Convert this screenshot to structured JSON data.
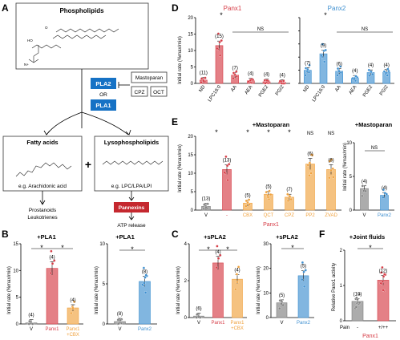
{
  "colors": {
    "panx1": "#d63b45",
    "panx1_light": "#e98489",
    "panx2": "#3d8fd0",
    "orange": "#f0a13c",
    "grey": "#7f7f7f",
    "blue_box": "#1672c5",
    "red_box": "#c5282f"
  },
  "panelA": {
    "letter": "A",
    "phospholipids": "Phospholipids",
    "mastoparan": "Mastoparan",
    "cpz": "CPZ",
    "oct": "OCT",
    "pla2": "PLA2",
    "or": "OR",
    "pla1": "PLA1",
    "fatty_acids": "Fatty acids",
    "fatty_example": "e.g. Arachidonic acid",
    "lyso": "Lysophospholipids",
    "lyso_example": "e.g. LPC/LPA/LPI",
    "plus": "+",
    "prostanoids": "Prostanoids",
    "leukotrienes": "Leukotrienes",
    "pannexins": "Pannexins",
    "atp_release": "ATP release"
  },
  "panelB": {
    "letter": "B",
    "title1": "+PLA1",
    "title2": "+PLA1",
    "ylabel1": "Initial rate (%max/min)",
    "ylabel2": "Initial rate (%max/min)",
    "yticks1": [
      "0",
      "5",
      "10",
      "15"
    ],
    "yticks2": [
      "0",
      "5",
      "10"
    ],
    "star": "*",
    "cats1": [
      {
        "label": "V",
        "n": "(4)",
        "mean": 0.2,
        "color": "#7f7f7f"
      },
      {
        "label": "Panx1",
        "n": "(4)",
        "mean": 10.4,
        "color": "#d63b45"
      },
      {
        "label": "Panx1\n+CBX",
        "n": "(4)",
        "mean": 3.0,
        "color": "#f0a13c"
      }
    ],
    "cats2": [
      {
        "label": "V",
        "n": "(8)",
        "mean": 0.3,
        "color": "#7f7f7f"
      },
      {
        "label": "Panx2",
        "n": "(8)",
        "mean": 5.3,
        "color": "#3d8fd0"
      }
    ],
    "xlabel_a": "V",
    "xlabel_b": "Panx1",
    "xlabel_c1": "Panx1",
    "xlabel_c2": "+CBX",
    "xlabel_d": "V",
    "xlabel_e": "Panx2"
  },
  "panelC": {
    "letter": "C",
    "title1": "+sPLA2",
    "title2": "+sPLA2",
    "ylabel1": "Initial rate (%max/min)",
    "ylabel2": "Initial rate (%max/min)",
    "yticks1": [
      "0",
      "2",
      "4"
    ],
    "yticks2": [
      "0",
      "10",
      "20",
      "30"
    ],
    "star": "*",
    "cats1": [
      {
        "label": "V",
        "n": "(6)",
        "mean": 0.1,
        "color": "#7f7f7f"
      },
      {
        "label": "Panx1",
        "n": "(4)",
        "mean": 3.7,
        "color": "#d63b45"
      },
      {
        "label": "Panx1\n+CBX",
        "n": "(4)",
        "mean": 2.6,
        "color": "#f0a13c"
      }
    ],
    "cats2": [
      {
        "label": "V",
        "n": "(5)",
        "mean": 6,
        "color": "#7f7f7f"
      },
      {
        "label": "Panx2",
        "n": "(5)",
        "mean": 17,
        "color": "#3d8fd0"
      }
    ],
    "xlabel_a": "V",
    "xlabel_b": "Panx1",
    "xlabel_c1": "Panx1",
    "xlabel_c2": "+CBX",
    "xlabel_d": "V",
    "xlabel_e": "Panx2"
  },
  "panelD": {
    "letter": "D",
    "title1": "Panx1",
    "title2": "Panx2",
    "ylabel": "Initial rate (%max/min)",
    "yticks": [
      "0",
      "5",
      "10",
      "15",
      "20"
    ],
    "ns": "NS",
    "star": "*",
    "cats1": [
      {
        "label": "ND",
        "n": "(11)",
        "mean": 1.0
      },
      {
        "label": "LPC16:0",
        "n": "(15)",
        "mean": 11.5
      },
      {
        "label": "AA",
        "n": "(7)",
        "mean": 2.5
      },
      {
        "label": "AEA",
        "n": "(4)",
        "mean": 0.8
      },
      {
        "label": "PGE2",
        "n": "(4)",
        "mean": 0.5
      },
      {
        "label": "PGI2",
        "n": "(4)",
        "mean": 0.3
      }
    ],
    "cats2": [
      {
        "label": "ND",
        "n": "(7)",
        "mean": 4.0
      },
      {
        "label": "LPC16:0",
        "n": "(9)",
        "mean": 9.0
      },
      {
        "label": "AA",
        "n": "(6)",
        "mean": 3.7
      },
      {
        "label": "AEA",
        "n": "(4)",
        "mean": 1.6
      },
      {
        "label": "PGE2",
        "n": "(4)",
        "mean": 3.3
      },
      {
        "label": "PGI2",
        "n": "(4)",
        "mean": 3.4
      }
    ]
  },
  "panelE": {
    "letter": "E",
    "title1": "+Mastoparan",
    "title2": "+Mastoparan",
    "ylabel1": "Initial rate (%max/min)",
    "ylabel2": "Initial rate (%max/min)",
    "yticks1": [
      "0",
      "5",
      "10",
      "15",
      "20"
    ],
    "yticks2": [
      "0",
      "5",
      "10"
    ],
    "ns": "NS",
    "star": "*",
    "group_label": "Panx1",
    "cats1": [
      {
        "label": "V",
        "n": "(13)",
        "mean": 1.0,
        "color": "#7f7f7f"
      },
      {
        "label": "-",
        "n": "(13)",
        "mean": 11.0,
        "color": "#d63b45"
      },
      {
        "label": "CBX",
        "n": "(5)",
        "mean": 1.9,
        "color": "#f0a13c"
      },
      {
        "label": "QCT",
        "n": "(5)",
        "mean": 4.3,
        "color": "#f0a13c"
      },
      {
        "label": "CPZ",
        "n": "(7)",
        "mean": 3.5,
        "color": "#f0a13c"
      },
      {
        "label": "PP2",
        "n": "(6)",
        "mean": 12.5,
        "color": "#f0a13c"
      },
      {
        "label": "ZVAD",
        "n": "(6)",
        "mean": 11.0,
        "color": "#f0a13c"
      }
    ],
    "cats2": [
      {
        "label": "V",
        "n": "(4)",
        "mean": 3.2,
        "color": "#7f7f7f"
      },
      {
        "label": "Panx2",
        "n": "(4)",
        "mean": 2.2,
        "color": "#3d8fd0"
      }
    ]
  },
  "panelF": {
    "letter": "F",
    "title": "+Joint fluids",
    "ylabel": "Relative Panx1 activity",
    "yticks": [
      "0",
      "1",
      "2"
    ],
    "star": "*",
    "pain_label": "Pain",
    "minus": "-",
    "plus": "+/++",
    "group_label": "Panx1",
    "cats": [
      {
        "label": "-",
        "n": "(10)",
        "mean": 0.55
      },
      {
        "label": "+/++",
        "n": "(12)",
        "mean": 1.15
      }
    ]
  },
  "chart_data": [
    {
      "type": "bar",
      "title": "+PLA1",
      "ylabel": "Initial rate (%max/min)",
      "ylim": [
        0,
        15
      ],
      "categories": [
        "V",
        "Panx1",
        "Panx1 +CBX"
      ],
      "values": [
        0.2,
        10.4,
        3.0
      ]
    },
    {
      "type": "bar",
      "title": "+PLA1",
      "ylabel": "Initial rate (%max/min)",
      "ylim": [
        0,
        10
      ],
      "categories": [
        "V",
        "Panx2"
      ],
      "values": [
        0.3,
        5.3
      ]
    },
    {
      "type": "bar",
      "title": "+sPLA2",
      "ylabel": "Initial rate (%max/min)",
      "ylim": [
        0,
        5
      ],
      "categories": [
        "V",
        "Panx1",
        "Panx1 +CBX"
      ],
      "values": [
        0.1,
        3.7,
        2.6
      ]
    },
    {
      "type": "bar",
      "title": "+sPLA2",
      "ylabel": "Initial rate (%max/min)",
      "ylim": [
        0,
        30
      ],
      "categories": [
        "V",
        "Panx2"
      ],
      "values": [
        6,
        17
      ]
    },
    {
      "type": "bar",
      "ylabel": "Initial rate (%max/min)",
      "ylim": [
        0,
        20
      ],
      "categories": [
        "ND",
        "LPC16:0",
        "AA",
        "AEA",
        "PGE2",
        "PGI2"
      ],
      "series": [
        {
          "name": "Panx1",
          "values": [
            1.0,
            11.5,
            2.5,
            0.8,
            0.5,
            0.3
          ]
        },
        {
          "name": "Panx2",
          "values": [
            4.0,
            9.0,
            3.7,
            1.6,
            3.3,
            3.4
          ]
        }
      ]
    },
    {
      "type": "bar",
      "title": "+Mastoparan",
      "ylabel": "Initial rate (%max/min)",
      "ylim": [
        0,
        20
      ],
      "categories": [
        "V",
        "-",
        "CBX",
        "QCT",
        "CPZ",
        "PP2",
        "ZVAD"
      ],
      "values": [
        1.0,
        11.0,
        1.9,
        4.3,
        3.5,
        12.5,
        11.0
      ]
    },
    {
      "type": "bar",
      "title": "+Mastoparan",
      "ylabel": "Initial rate (%max/min)",
      "ylim": [
        0,
        10
      ],
      "categories": [
        "V",
        "Panx2"
      ],
      "values": [
        3.2,
        2.2
      ]
    },
    {
      "type": "bar",
      "title": "+Joint fluids",
      "ylabel": "Relative Panx1 activity",
      "ylim": [
        0,
        2
      ],
      "categories": [
        "-",
        "+/++"
      ],
      "values": [
        0.55,
        1.15
      ]
    }
  ]
}
